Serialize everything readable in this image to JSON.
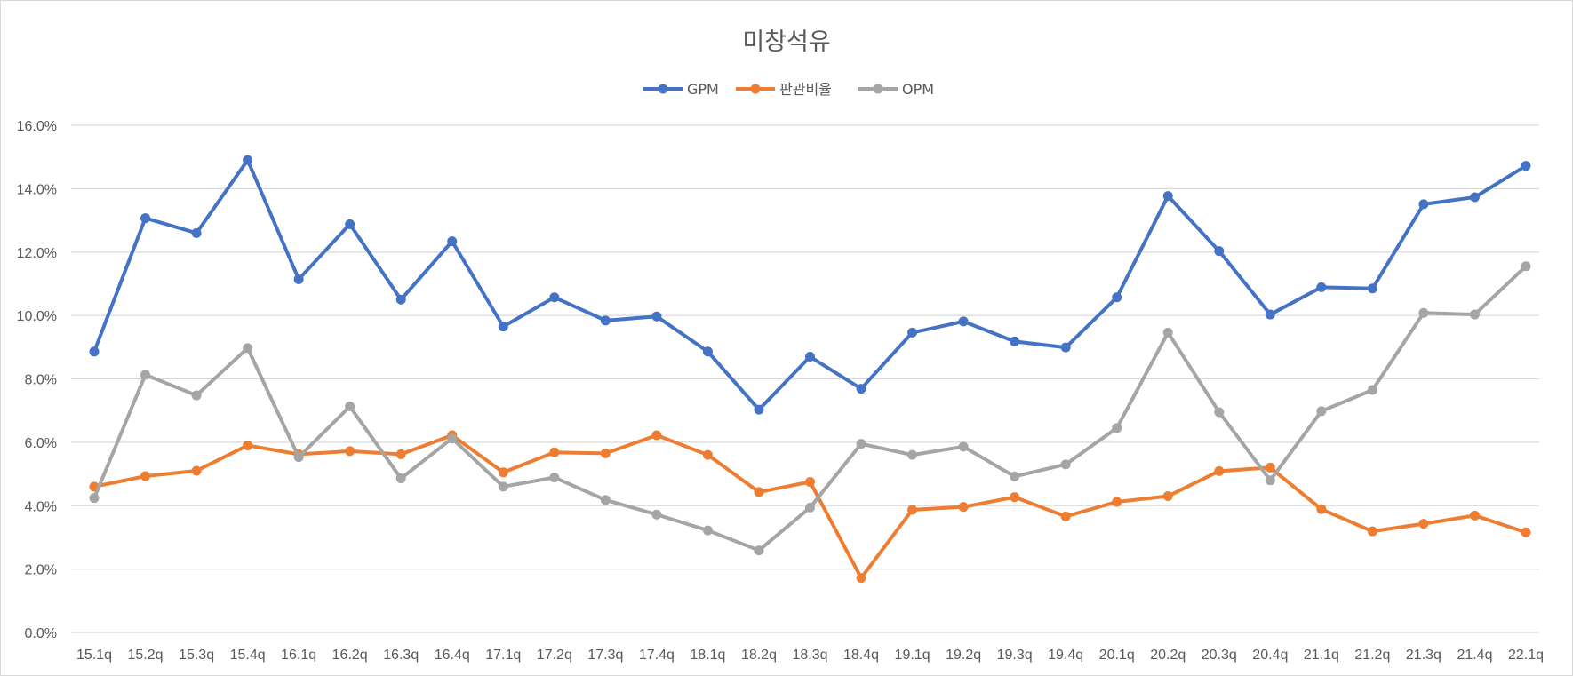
{
  "chart_data": {
    "type": "line",
    "title": "미창석유",
    "xlabel": "",
    "ylabel": "",
    "ylim": [
      0,
      16
    ],
    "yticks": [
      "0.0%",
      "2.0%",
      "4.0%",
      "6.0%",
      "8.0%",
      "10.0%",
      "12.0%",
      "14.0%",
      "16.0%"
    ],
    "ytick_values": [
      0,
      2,
      4,
      6,
      8,
      10,
      12,
      14,
      16
    ],
    "grid": true,
    "legend_position": "top",
    "categories": [
      "15.1q",
      "15.2q",
      "15.3q",
      "15.4q",
      "16.1q",
      "16.2q",
      "16.3q",
      "16.4q",
      "17.1q",
      "17.2q",
      "17.3q",
      "17.4q",
      "18.1q",
      "18.2q",
      "18.3q",
      "18.4q",
      "19.1q",
      "19.2q",
      "19.3q",
      "19.4q",
      "20.1q",
      "20.2q",
      "20.3q",
      "20.4q",
      "21.1q",
      "21.2q",
      "21.3q",
      "21.4q",
      "22.1q"
    ],
    "series": [
      {
        "name": "GPM",
        "color": "#4472c4",
        "values": [
          8.86,
          13.07,
          12.6,
          14.9,
          11.14,
          12.88,
          10.5,
          12.34,
          9.65,
          10.57,
          9.84,
          9.97,
          8.86,
          7.03,
          8.7,
          7.69,
          9.46,
          9.81,
          9.18,
          8.99,
          10.57,
          13.77,
          12.03,
          10.03,
          10.89,
          10.85,
          13.51,
          13.73,
          14.72
        ]
      },
      {
        "name": "판관비율",
        "color": "#ed7d31",
        "values": [
          4.6,
          4.93,
          5.1,
          5.9,
          5.62,
          5.72,
          5.62,
          6.22,
          5.05,
          5.68,
          5.65,
          6.22,
          5.6,
          4.43,
          4.75,
          1.72,
          3.87,
          3.96,
          4.27,
          3.66,
          4.12,
          4.3,
          5.09,
          5.2,
          3.89,
          3.19,
          3.43,
          3.69,
          3.16
        ]
      },
      {
        "name": "OPM",
        "color": "#a5a5a5",
        "values": [
          4.24,
          8.13,
          7.48,
          8.97,
          5.53,
          7.13,
          4.86,
          6.12,
          4.6,
          4.89,
          4.18,
          3.72,
          3.22,
          2.59,
          3.94,
          5.95,
          5.6,
          5.86,
          4.92,
          5.3,
          6.45,
          9.46,
          6.95,
          4.8,
          6.98,
          7.65,
          10.08,
          10.03,
          11.55
        ]
      }
    ]
  }
}
